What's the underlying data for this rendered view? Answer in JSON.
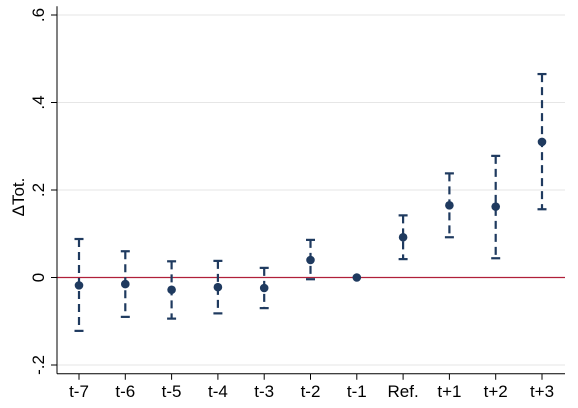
{
  "chart_data": {
    "type": "scatter",
    "subtype": "coefficient-plot-with-error-bars",
    "title": "",
    "xlabel": "",
    "ylabel": "ΔTot.",
    "ylim": [
      -0.22,
      0.62
    ],
    "yticks": [
      -0.2,
      0,
      0.2,
      0.4,
      0.6
    ],
    "ytick_labels": [
      "-.2",
      "0",
      ".2",
      ".4",
      ".6"
    ],
    "categories": [
      "t-7",
      "t-6",
      "t-5",
      "t-4",
      "t-3",
      "t-2",
      "t-1",
      "Ref.",
      "t+1",
      "t+2",
      "t+3"
    ],
    "estimates": [
      -0.018,
      -0.015,
      -0.028,
      -0.022,
      -0.024,
      0.04,
      0.0,
      0.092,
      0.165,
      0.162,
      0.31
    ],
    "ci_lower": [
      -0.122,
      -0.09,
      -0.094,
      -0.082,
      -0.07,
      -0.004,
      0.0,
      0.042,
      0.092,
      0.044,
      0.156
    ],
    "ci_upper": [
      0.088,
      0.06,
      0.037,
      0.038,
      0.022,
      0.086,
      0.0,
      0.142,
      0.238,
      0.278,
      0.465
    ],
    "reference_line": 0,
    "grid": true,
    "legend": "none",
    "colors": {
      "marker": "#1f3a5f",
      "error_bar": "#1f3a5f",
      "reference_line": "#b0203a",
      "grid": "#e6e6e6",
      "axis": "#000000"
    }
  }
}
